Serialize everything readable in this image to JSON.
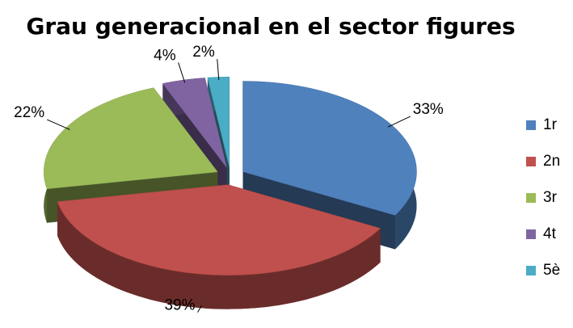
{
  "chart_data": {
    "type": "pie",
    "title": "Grau generacional en el sector figures",
    "categories": [
      "1r",
      "2n",
      "3r",
      "4t",
      "5è"
    ],
    "values": [
      33,
      39,
      22,
      4,
      2
    ],
    "value_labels": [
      "33%",
      "39%",
      "22%",
      "4%",
      "2%"
    ],
    "colors": [
      "#4f81bd",
      "#c0504d",
      "#9bbb59",
      "#8064a2",
      "#4bacc6"
    ],
    "legend": "right"
  }
}
